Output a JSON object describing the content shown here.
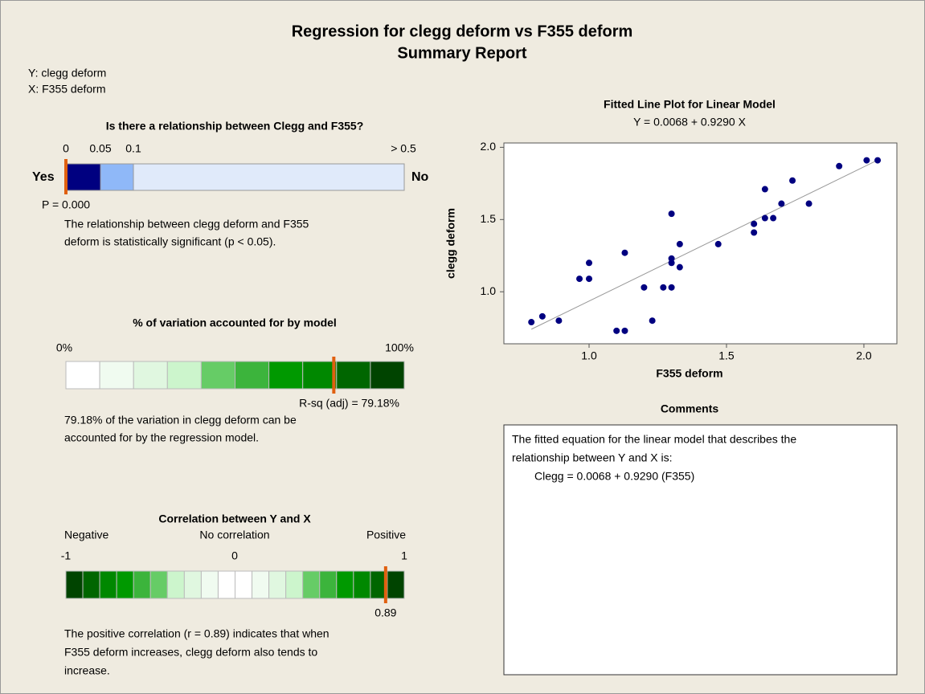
{
  "header": {
    "title": "Regression for clegg deform vs F355 deform",
    "subtitle": "Summary Report",
    "y_label": "Y: clegg deform",
    "x_label": "X: F355 deform"
  },
  "relationship": {
    "title": "Is there a relationship between Clegg and F355?",
    "ticks": [
      "0",
      "0.05",
      "0.1",
      "> 0.5"
    ],
    "yes": "Yes",
    "no": "No",
    "p_label": "P = 0.000",
    "text": [
      "The relationship between clegg deform and F355",
      "deform is statistically significant (p < 0.05)."
    ]
  },
  "variation": {
    "title": "% of variation accounted for by model",
    "min_label": "0%",
    "max_label": "100%",
    "lim": [
      0,
      100
    ],
    "r_squared_adj": 79.18,
    "r_sq_label": "R-sq (adj) = 79.18%",
    "text": [
      "79.18% of the variation in clegg deform can be",
      "accounted for by the regression model."
    ]
  },
  "correlation": {
    "title": "Correlation between Y and X",
    "ends": [
      "Negative",
      "No correlation",
      "Positive"
    ],
    "ticks": [
      "-1",
      "0",
      "1"
    ],
    "lim": [
      -1,
      1
    ],
    "r": 0.89,
    "text": [
      "The positive correlation (r = 0.89) indicates that when",
      "F355 deform increases, clegg deform also tends to",
      "increase."
    ]
  },
  "chart_data": {
    "type": "scatter",
    "title": "Fitted Line Plot for Linear Model",
    "subtitle": "Y =  0.0068 + 0.9290 X",
    "x_label": "F355 deform",
    "y_label": "clegg deform",
    "x": [
      0.79,
      0.83,
      0.89,
      0.965,
      1.0,
      1.0,
      1.1,
      1.13,
      1.13,
      1.2,
      1.23,
      1.27,
      1.3,
      1.3,
      1.3,
      1.3,
      1.33,
      1.33,
      1.47,
      1.6,
      1.6,
      1.64,
      1.64,
      1.67,
      1.7,
      1.74,
      1.8,
      1.91,
      2.01,
      2.05
    ],
    "values": [
      0.79,
      0.83,
      0.8,
      1.09,
      1.2,
      1.09,
      0.73,
      0.73,
      1.27,
      1.03,
      0.8,
      1.03,
      1.54,
      1.23,
      1.2,
      1.03,
      1.33,
      1.17,
      1.33,
      1.47,
      1.41,
      1.71,
      1.51,
      1.51,
      1.61,
      1.77,
      1.61,
      1.87,
      1.91,
      1.91
    ],
    "color": "#000080",
    "fit": {
      "intercept": 0.0068,
      "slope": 0.929,
      "color": "#999999"
    },
    "xlim": [
      0.69,
      2.12
    ],
    "ylim": [
      0.64,
      2.03
    ],
    "xticks": [
      {
        "value": 1,
        "label": "1.0"
      },
      1.5,
      {
        "value": 2,
        "label": "2.0"
      }
    ],
    "yticks": [
      {
        "value": 1,
        "label": "1.0"
      },
      1.5,
      {
        "value": 2,
        "label": "2.0"
      }
    ]
  },
  "comments": {
    "title": "Comments",
    "lines": [
      "The fitted equation for the linear model that describes the",
      "relationship between Y and X is:",
      "Clegg =  0.0068 + 0.9290 (F355)"
    ]
  }
}
